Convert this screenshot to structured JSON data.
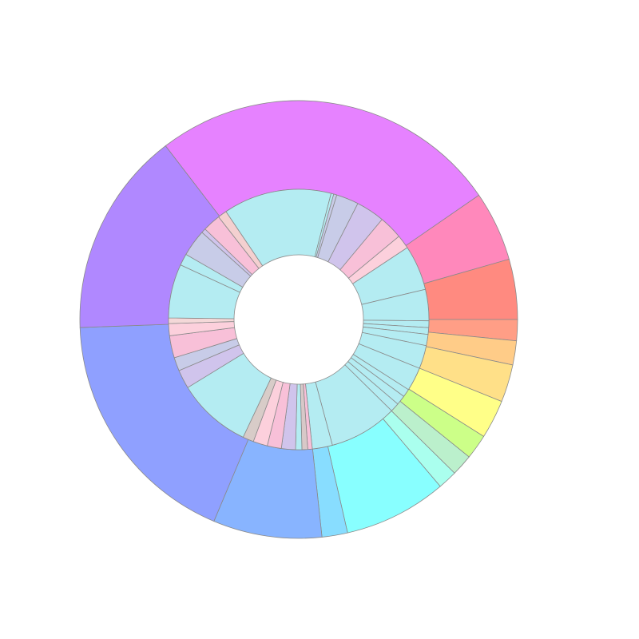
{
  "chart_data": {
    "type": "sunburst",
    "rings": [
      {
        "values": [
          92.9,
          18.6,
          16,
          5.6,
          6.4,
          10,
          10.3,
          6.6,
          5.7,
          5.1,
          27.4,
          6.8,
          28.9,
          65.1,
          54.6
        ],
        "colors": [
          "#e682ff",
          "#ff88bb",
          "#ff8a80",
          "#ff9e86",
          "#ffcc88",
          "#ffe088",
          "#ffff88",
          "#ccff88",
          "#bbf0cc",
          "#aaffee",
          "#88ffff",
          "#88ddff",
          "#88b4ff",
          "#8fa0ff",
          "#b088ff"
        ]
      },
      {
        "values": [
          48.4,
          1.2,
          1.4,
          10,
          12.8,
          10.5,
          6.2,
          20.1,
          14,
          3,
          3,
          5,
          10.4,
          10.6,
          3.6,
          4.3,
          4,
          30.5,
          9,
          2,
          2.6,
          2.8,
          6.3,
          6.3,
          6.4,
          4.9,
          33.2,
          8.4,
          6,
          9.9,
          5.4,
          2.5,
          24.1,
          5.2,
          12,
          2,
          8,
          4
        ],
        "colors": [
          "#b4ecf2",
          "#b4ecf2",
          "#c8cce8",
          "#c8cce8",
          "#d0c4ec",
          "#f8c0d8",
          "#fcd0dc",
          "#b4ecf2",
          "#b4ecf2",
          "#b4ecf2",
          "#b4ecf2",
          "#b4ecf2",
          "#b4ecf2",
          "#b4ecf2",
          "#b4ecf2",
          "#b4ecf2",
          "#b4ecf2",
          "#b4ecf2",
          "#b4ecf2",
          "#f8c0d8",
          "#d8c8c8",
          "#b4ecf2",
          "#d0c4ec",
          "#f8c0d8",
          "#fcd0dc",
          "#d8ccc8",
          "#b4ecf2",
          "#d0c4ec",
          "#c8cce8",
          "#f8c0d8",
          "#fcd0dc",
          "#f4d8d8",
          "#b4ecf2",
          "#b4ecf2",
          "#c8cce8",
          "#d0c4ec",
          "#f8c0d8",
          "#f4d0d0"
        ]
      }
    ]
  }
}
